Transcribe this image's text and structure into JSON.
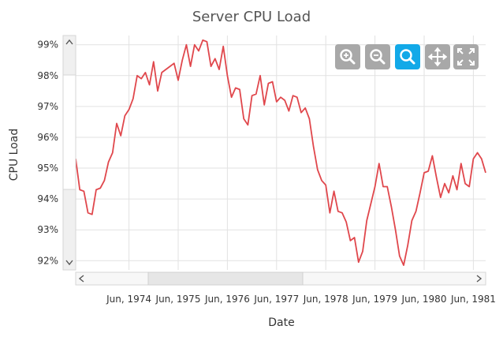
{
  "chart_data": {
    "type": "line",
    "title": "Server CPU Load",
    "xlabel": "Date",
    "ylabel": "CPU Load",
    "ylim": [
      91.7,
      99.3
    ],
    "y_ticks": [
      "92%",
      "93%",
      "94%",
      "95%",
      "96%",
      "97%",
      "98%",
      "99%"
    ],
    "x_ticks": [
      "Jun, 1974",
      "Jun, 1975",
      "Jun, 1976",
      "Jun, 1977",
      "Jun, 1978",
      "Jun, 1979",
      "Jun, 1980",
      "Jun, 1981"
    ],
    "grid": true,
    "series": [
      {
        "color": "#e0474c",
        "x": [
          "1973-05",
          "1973-06",
          "1973-07",
          "1973-08",
          "1973-09",
          "1973-10",
          "1973-11",
          "1973-12",
          "1974-01",
          "1974-02",
          "1974-03",
          "1974-04",
          "1974-05",
          "1974-06",
          "1974-07",
          "1974-08",
          "1974-09",
          "1974-10",
          "1974-11",
          "1974-12",
          "1975-01",
          "1975-02",
          "1975-03",
          "1975-04",
          "1975-05",
          "1975-06",
          "1975-07",
          "1975-08",
          "1975-09",
          "1975-10",
          "1975-11",
          "1975-12",
          "1976-01",
          "1976-02",
          "1976-03",
          "1976-04",
          "1976-05",
          "1976-06",
          "1976-07",
          "1976-08",
          "1976-09",
          "1976-10",
          "1976-11",
          "1976-12",
          "1977-01",
          "1977-02",
          "1977-03",
          "1977-04",
          "1977-05",
          "1977-06",
          "1977-07",
          "1977-08",
          "1977-09",
          "1977-10",
          "1977-11",
          "1977-12",
          "1978-01",
          "1978-02",
          "1978-03",
          "1978-04",
          "1978-05",
          "1978-06",
          "1978-07",
          "1978-08",
          "1978-09",
          "1978-10",
          "1978-11",
          "1978-12",
          "1979-01",
          "1979-02",
          "1979-03",
          "1979-04",
          "1979-05",
          "1979-06",
          "1979-07",
          "1979-08",
          "1979-09",
          "1979-10",
          "1979-11",
          "1979-12",
          "1980-01",
          "1980-02",
          "1980-03",
          "1980-04",
          "1980-05",
          "1980-06",
          "1980-07",
          "1980-08",
          "1980-09",
          "1980-10",
          "1980-11",
          "1980-12",
          "1981-01",
          "1981-02",
          "1981-03",
          "1981-04",
          "1981-05",
          "1981-06",
          "1981-07",
          "1981-08",
          "1981-09"
        ],
        "values": [
          95.3,
          94.3,
          94.25,
          93.55,
          93.5,
          94.3,
          94.35,
          94.6,
          95.2,
          95.5,
          96.45,
          96.05,
          96.7,
          96.9,
          97.25,
          98.0,
          97.9,
          98.1,
          97.7,
          98.45,
          97.5,
          98.1,
          98.2,
          98.3,
          98.4,
          97.85,
          98.5,
          99.0,
          98.3,
          99.0,
          98.8,
          99.15,
          99.1,
          98.3,
          98.55,
          98.2,
          98.95,
          98.0,
          97.3,
          97.6,
          97.55,
          96.6,
          96.4,
          97.35,
          97.4,
          98.0,
          97.05,
          97.75,
          97.8,
          97.15,
          97.3,
          97.2,
          96.85,
          97.35,
          97.3,
          96.8,
          96.95,
          96.6,
          95.7,
          94.95,
          94.6,
          94.45,
          93.55,
          94.25,
          93.6,
          93.55,
          93.25,
          92.65,
          92.75,
          91.95,
          92.3,
          93.3,
          93.85,
          94.4,
          95.15,
          94.4,
          94.4,
          93.75,
          93.0,
          92.15,
          91.85,
          92.5,
          93.3,
          93.6,
          94.2,
          94.85,
          94.9,
          95.4,
          94.7,
          94.05,
          94.5,
          94.2,
          94.75,
          94.3,
          95.15,
          94.5,
          94.4,
          95.3,
          95.5,
          95.3,
          94.85
        ]
      }
    ]
  }
}
